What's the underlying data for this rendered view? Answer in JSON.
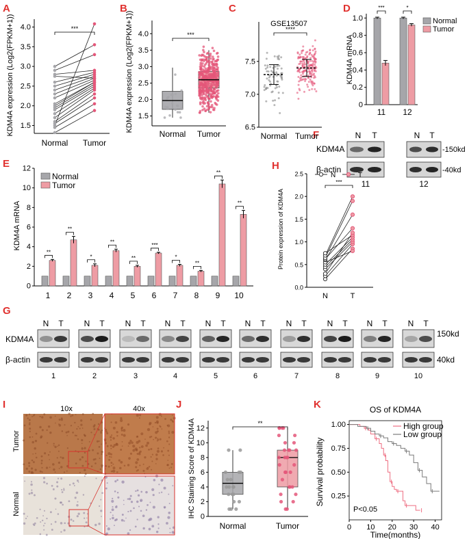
{
  "colors": {
    "panel_label": "#e0302e",
    "normal": "#a6a6aa",
    "tumor": "#ee9ca4",
    "tumor_dark": "#e4577a",
    "pair_line": "#222222",
    "km_high": "#ee6e82",
    "km_low": "#7a7a7a"
  },
  "panels": {
    "A": "A",
    "B": "B",
    "C": "C",
    "D": "D",
    "E": "E",
    "F": "F",
    "G": "G",
    "H": "H",
    "I": "I",
    "J": "J",
    "K": "K"
  },
  "chart_data": [
    {
      "id": "A",
      "type": "scatter",
      "title": "",
      "ylabel": "KDM4A expression (Log2(FPKM+1))",
      "categories": [
        "Normal",
        "Tumor"
      ],
      "ylim": [
        1.3,
        4.2
      ],
      "yticks": [
        1.5,
        2.0,
        2.5,
        3.0,
        3.5,
        4.0
      ],
      "ytick_labels": [
        "1.5",
        "2.0",
        "2.5",
        "3.0",
        "3.5",
        "4.0"
      ],
      "pairs": [
        [
          1.32,
          1.88
        ],
        [
          1.45,
          2.05
        ],
        [
          1.55,
          2.2
        ],
        [
          1.6,
          2.3
        ],
        [
          1.7,
          2.4
        ],
        [
          1.8,
          2.45
        ],
        [
          1.9,
          2.5
        ],
        [
          1.95,
          2.55
        ],
        [
          2.0,
          2.6
        ],
        [
          2.05,
          2.6
        ],
        [
          2.2,
          2.65
        ],
        [
          2.3,
          2.7
        ],
        [
          2.4,
          2.75
        ],
        [
          2.5,
          2.8
        ],
        [
          2.6,
          2.85
        ],
        [
          2.8,
          2.9
        ],
        [
          2.9,
          3.3
        ],
        [
          3.0,
          3.55
        ],
        [
          1.5,
          4.08
        ],
        [
          2.75,
          2.7
        ]
      ],
      "significance": "***"
    },
    {
      "id": "B",
      "type": "box",
      "ylabel": "KDM4A expression (Log2(FPKM+1))",
      "categories": [
        "Normal",
        "Tumor"
      ],
      "ylim": [
        1.2,
        4.4
      ],
      "yticks": [
        1.5,
        2.0,
        2.5,
        3.0,
        3.5,
        4.0
      ],
      "ytick_labels": [
        "1.5",
        "2.0",
        "2.5",
        "3.0",
        "3.5",
        "4.0"
      ],
      "boxes": [
        {
          "name": "Normal",
          "min": 1.45,
          "q1": 1.7,
          "median": 1.97,
          "q3": 2.25,
          "max": 2.97
        },
        {
          "name": "Tumor",
          "min": 1.6,
          "q1": 2.35,
          "median": 2.6,
          "q3": 2.85,
          "max": 3.5
        }
      ],
      "significance": "***"
    },
    {
      "id": "C",
      "type": "scatter",
      "title": "GSE13507",
      "categories": [
        "Normal",
        "Tumor"
      ],
      "ylim": [
        6.5,
        8.1
      ],
      "yticks": [
        6.5,
        7.0,
        7.5
      ],
      "ytick_labels": [
        "6.5",
        "7.0",
        "7.5"
      ],
      "means": [
        7.3,
        7.4
      ],
      "sd": [
        0.15,
        0.13
      ],
      "significance": "****"
    },
    {
      "id": "D",
      "type": "bar",
      "ylabel": "KDM4A mRNA",
      "categories": [
        "11",
        "12"
      ],
      "series": [
        {
          "name": "Normal",
          "values": [
            1.0,
            1.0
          ],
          "err": [
            0.01,
            0.01
          ]
        },
        {
          "name": "Tumor",
          "values": [
            0.48,
            0.92
          ],
          "err": [
            0.03,
            0.015
          ]
        }
      ],
      "ylim": [
        0,
        1.05
      ],
      "yticks": [
        0,
        0.2,
        0.4,
        0.6,
        0.8,
        1.0
      ],
      "ytick_labels": [
        "0",
        "0.2",
        "0.4",
        "0.6",
        "0.8",
        "1.0"
      ],
      "significance": [
        "***",
        "*"
      ]
    },
    {
      "id": "E",
      "type": "bar",
      "ylabel": "KDM4A mRNA",
      "categories": [
        "1",
        "2",
        "3",
        "4",
        "5",
        "6",
        "7",
        "8",
        "9",
        "10"
      ],
      "series": [
        {
          "name": "Normal",
          "values": [
            1,
            1,
            1,
            1,
            1,
            1,
            1,
            1,
            1,
            1
          ]
        },
        {
          "name": "Tumor",
          "values": [
            2.6,
            4.7,
            2.1,
            3.6,
            2.0,
            3.35,
            2.1,
            1.5,
            10.4,
            7.3
          ],
          "err": [
            0.1,
            0.35,
            0.15,
            0.15,
            0.1,
            0.08,
            0.1,
            0.08,
            0.4,
            0.4
          ]
        }
      ],
      "ylim": [
        0,
        12
      ],
      "yticks": [
        0,
        2,
        4,
        6,
        8,
        10,
        12
      ],
      "ytick_labels": [
        "0",
        "2",
        "4",
        "6",
        "8",
        "10",
        "12"
      ],
      "significance": [
        "**",
        "**",
        "*",
        "**",
        "**",
        "***",
        "*",
        "**",
        "**",
        "**"
      ]
    },
    {
      "id": "H",
      "type": "scatter",
      "ylabel": "Protein expression of KDM4A",
      "categories": [
        "N",
        "T"
      ],
      "legend": [
        "N",
        "T"
      ],
      "ylim": [
        0,
        2.5
      ],
      "yticks": [
        0.0,
        0.5,
        1.0,
        1.5,
        2.0,
        2.5
      ],
      "ytick_labels": [
        "0.0",
        "0.5",
        "1.0",
        "1.5",
        "2.0",
        "2.5"
      ],
      "pairs": [
        [
          0.18,
          0.85
        ],
        [
          0.25,
          0.95
        ],
        [
          0.4,
          1.0
        ],
        [
          0.45,
          1.05
        ],
        [
          0.5,
          1.1
        ],
        [
          0.55,
          0.8
        ],
        [
          0.6,
          1.6
        ],
        [
          0.62,
          1.3
        ],
        [
          0.65,
          1.9
        ],
        [
          0.7,
          2.0
        ],
        [
          0.75,
          1.15
        ],
        [
          0.3,
          1.2
        ]
      ],
      "significance": "***"
    },
    {
      "id": "J",
      "type": "box",
      "ylabel": "IHC Staining Score of KDM4A",
      "categories": [
        "Normal",
        "Tumor"
      ],
      "ylim": [
        0,
        13
      ],
      "yticks": [
        0,
        2,
        4,
        6,
        8,
        10,
        12
      ],
      "ytick_labels": [
        "0",
        "2",
        "4",
        "6",
        "8",
        "10",
        "12"
      ],
      "boxes": [
        {
          "name": "Normal",
          "min": 1.0,
          "q1": 3.0,
          "median": 4.5,
          "q3": 6.0,
          "max": 9.0
        },
        {
          "name": "Tumor",
          "min": 1.0,
          "q1": 4.0,
          "median": 8.0,
          "q3": 9.0,
          "max": 12.0
        }
      ],
      "significance": "**"
    },
    {
      "id": "K",
      "type": "line",
      "title": "OS of KDM4A",
      "xlabel": "Time(months)",
      "ylabel": "Survival probability",
      "xlim": [
        0,
        43
      ],
      "ylim": [
        0.0,
        1.04
      ],
      "xticks": [
        0,
        10,
        20,
        30,
        40
      ],
      "xtick_labels": [
        "0",
        "10",
        "20",
        "30",
        "40"
      ],
      "yticks": [
        0.25,
        0.5,
        0.75,
        1.0
      ],
      "ytick_labels": [
        "0.25",
        "0.50",
        "0.75",
        "1.00"
      ],
      "legend": [
        "High group",
        "Low group"
      ],
      "annotation": "P<0.05",
      "series": [
        {
          "name": "High group",
          "x": [
            0,
            5,
            7,
            9,
            10,
            12,
            14,
            15,
            16,
            17,
            18,
            19,
            20,
            21,
            22,
            24,
            25,
            26,
            30,
            31,
            33
          ],
          "y": [
            1.0,
            0.98,
            0.96,
            0.94,
            0.9,
            0.85,
            0.8,
            0.75,
            0.68,
            0.62,
            0.5,
            0.4,
            0.35,
            0.32,
            0.3,
            0.3,
            0.2,
            0.15,
            0.15,
            0.1,
            0.1
          ]
        },
        {
          "name": "Low group",
          "x": [
            0,
            4,
            8,
            10,
            12,
            14,
            16,
            18,
            20,
            22,
            24,
            26,
            28,
            30,
            32,
            34,
            36,
            38,
            40,
            42
          ],
          "y": [
            1.0,
            0.98,
            0.96,
            0.93,
            0.9,
            0.88,
            0.86,
            0.82,
            0.8,
            0.78,
            0.75,
            0.72,
            0.68,
            0.6,
            0.52,
            0.45,
            0.38,
            0.3,
            0.3,
            0.3
          ]
        }
      ]
    }
  ],
  "blots": {
    "F": {
      "lanes": [
        "N",
        "T",
        "N",
        "T"
      ],
      "samples": [
        "11",
        "12"
      ],
      "rows": [
        "KDM4A",
        "β-actin"
      ],
      "sizes": [
        "-150kd",
        "-40kd"
      ]
    },
    "G": {
      "lanes": [
        "N",
        "T"
      ],
      "samples": [
        "1",
        "2",
        "3",
        "4",
        "5",
        "6",
        "7",
        "8",
        "9",
        "10"
      ],
      "rows": [
        "KDM4A",
        "β-actin"
      ],
      "sizes": [
        "150kd",
        "40kd"
      ]
    }
  },
  "ihc": {
    "columns": [
      "10x",
      "40x"
    ],
    "rows": [
      "Tumor",
      "Normal"
    ]
  }
}
